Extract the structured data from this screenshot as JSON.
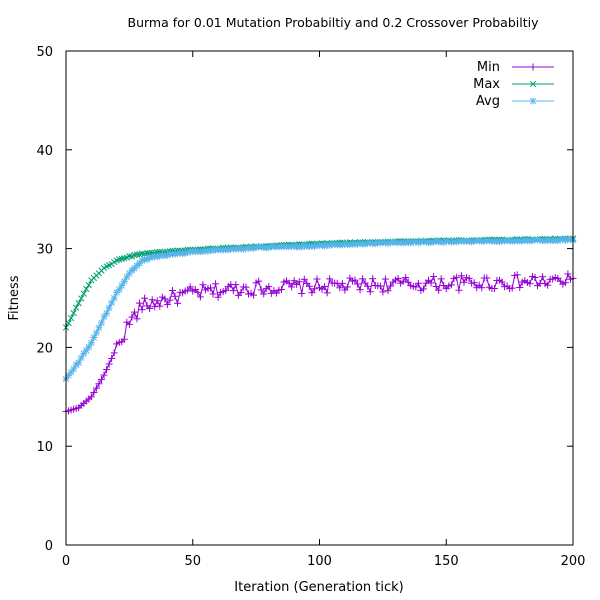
{
  "chart_data": {
    "type": "line",
    "title": "Burma for 0.01 Mutation Probabiltiy and 0.2 Crossover Probabiltiy",
    "xlabel": "Iteration (Generation tick)",
    "ylabel": "Fitness",
    "xlim": [
      0,
      200
    ],
    "ylim": [
      0,
      50
    ],
    "xticks": [
      0,
      50,
      100,
      150,
      200
    ],
    "yticks": [
      0,
      10,
      20,
      30,
      40,
      50
    ],
    "grid": false,
    "legend_position": "top-right",
    "series": [
      {
        "name": "Min",
        "color": "#9400d3",
        "marker": "plus",
        "keypoints": [
          [
            0,
            13.5
          ],
          [
            5,
            13.9
          ],
          [
            10,
            15.0
          ],
          [
            15,
            17.2
          ],
          [
            20,
            20.0
          ],
          [
            25,
            22.5
          ],
          [
            30,
            24.2
          ],
          [
            40,
            24.9
          ],
          [
            50,
            25.5
          ],
          [
            70,
            26.0
          ],
          [
            100,
            26.2
          ],
          [
            150,
            26.5
          ],
          [
            200,
            26.7
          ]
        ],
        "noise": 0.75,
        "noise_start": 20
      },
      {
        "name": "Max",
        "color": "#009e73",
        "marker": "x",
        "keypoints": [
          [
            0,
            22.0
          ],
          [
            5,
            24.5
          ],
          [
            10,
            26.8
          ],
          [
            15,
            28.0
          ],
          [
            20,
            28.8
          ],
          [
            25,
            29.2
          ],
          [
            30,
            29.5
          ],
          [
            50,
            29.9
          ],
          [
            75,
            30.2
          ],
          [
            100,
            30.5
          ],
          [
            125,
            30.7
          ],
          [
            150,
            30.8
          ],
          [
            175,
            30.9
          ],
          [
            200,
            31.0
          ]
        ],
        "noise": 0.05,
        "noise_start": 0
      },
      {
        "name": "Avg",
        "color": "#56b4e9",
        "marker": "star",
        "keypoints": [
          [
            0,
            16.8
          ],
          [
            5,
            18.5
          ],
          [
            10,
            20.5
          ],
          [
            15,
            23.0
          ],
          [
            20,
            25.5
          ],
          [
            25,
            27.5
          ],
          [
            30,
            28.8
          ],
          [
            35,
            29.2
          ],
          [
            50,
            29.7
          ],
          [
            75,
            30.1
          ],
          [
            100,
            30.3
          ],
          [
            125,
            30.6
          ],
          [
            150,
            30.7
          ],
          [
            175,
            30.8
          ],
          [
            200,
            30.9
          ]
        ],
        "noise": 0.08,
        "noise_start": 0
      }
    ]
  }
}
